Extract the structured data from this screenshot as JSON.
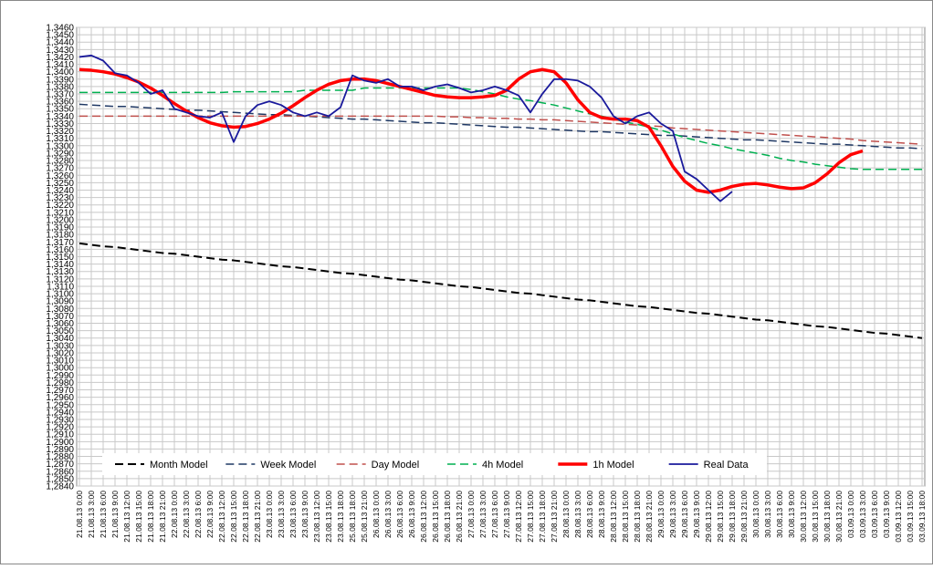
{
  "chart_data": {
    "type": "line",
    "legend": "bottom",
    "grid": true,
    "categories": [
      "21.08.13 0:00",
      "21.08.13 3:00",
      "21.08.13 6:00",
      "21.08.13 9:00",
      "21.08.13 12:00",
      "21.08.13 15:00",
      "21.08.13 18:00",
      "21.08.13 21:00",
      "22.08.13 0:00",
      "22.08.13 3:00",
      "22.08.13 6:00",
      "22.08.13 9:00",
      "22.08.13 12:00",
      "22.08.13 15:00",
      "22.08.13 18:00",
      "22.08.13 21:00",
      "23.08.13 0:00",
      "23.08.13 3:00",
      "23.08.13 6:00",
      "23.08.13 9:00",
      "23.08.13 12:00",
      "23.08.13 15:00",
      "23.08.13 18:00",
      "25.08.13 18:00",
      "25.08.13 21:00",
      "26.08.13 0:00",
      "26.08.13 3:00",
      "26.08.13 6:00",
      "26.08.13 9:00",
      "26.08.13 12:00",
      "26.08.13 15:00",
      "26.08.13 18:00",
      "26.08.13 21:00",
      "27.08.13 0:00",
      "27.08.13 3:00",
      "27.08.13 6:00",
      "27.08.13 9:00",
      "27.08.13 12:00",
      "27.08.13 15:00",
      "27.08.13 18:00",
      "27.08.13 21:00",
      "28.08.13 0:00",
      "28.08.13 3:00",
      "28.08.13 6:00",
      "28.08.13 9:00",
      "28.08.13 12:00",
      "28.08.13 15:00",
      "28.08.13 18:00",
      "28.08.13 21:00",
      "29.08.13 0:00",
      "29.08.13 3:00",
      "29.08.13 6:00",
      "29.08.13 9:00",
      "29.08.13 12:00",
      "29.08.13 15:00",
      "29.08.13 18:00",
      "29.08.13 21:00",
      "30.08.13 0:00",
      "30.08.13 3:00",
      "30.08.13 6:00",
      "30.08.13 9:00",
      "30.08.13 12:00",
      "30.08.13 15:00",
      "30.08.13 18:00",
      "30.08.13 21:00",
      "03.09.13 0:00",
      "03.09.13 3:00",
      "03.09.13 6:00",
      "03.09.13 9:00",
      "03.09.13 12:00",
      "03.09.13 15:00",
      "03.09.13 18:00"
    ],
    "ylim": [
      1.284,
      1.346
    ],
    "yticks": [
      {
        "value": 1.284,
        "label": "1,2840"
      },
      {
        "value": 1.285,
        "label": "1,2850"
      },
      {
        "value": 1.286,
        "label": "1,2860"
      },
      {
        "value": 1.287,
        "label": "1,2870"
      },
      {
        "value": 1.288,
        "label": "1,2880"
      },
      {
        "value": 1.289,
        "label": "1,2890"
      },
      {
        "value": 1.29,
        "label": "1,2900"
      },
      {
        "value": 1.291,
        "label": "1,2910"
      },
      {
        "value": 1.292,
        "label": "1,2920"
      },
      {
        "value": 1.293,
        "label": "1,2930"
      },
      {
        "value": 1.294,
        "label": "1,2940"
      },
      {
        "value": 1.295,
        "label": "1,2950"
      },
      {
        "value": 1.296,
        "label": "1,2960"
      },
      {
        "value": 1.297,
        "label": "1,2970"
      },
      {
        "value": 1.298,
        "label": "1,2980"
      },
      {
        "value": 1.299,
        "label": "1,2990"
      },
      {
        "value": 1.3,
        "label": "1,3000"
      },
      {
        "value": 1.301,
        "label": "1,3010"
      },
      {
        "value": 1.302,
        "label": "1,3020"
      },
      {
        "value": 1.303,
        "label": "1,3030"
      },
      {
        "value": 1.304,
        "label": "1,3040"
      },
      {
        "value": 1.305,
        "label": "1,3050"
      },
      {
        "value": 1.306,
        "label": "1,3060"
      },
      {
        "value": 1.307,
        "label": "1,3070"
      },
      {
        "value": 1.308,
        "label": "1,3080"
      },
      {
        "value": 1.309,
        "label": "1,3090"
      },
      {
        "value": 1.31,
        "label": "1,3100"
      },
      {
        "value": 1.311,
        "label": "1,3110"
      },
      {
        "value": 1.312,
        "label": "1,3120"
      },
      {
        "value": 1.313,
        "label": "1,3130"
      },
      {
        "value": 1.314,
        "label": "1,3140"
      },
      {
        "value": 1.315,
        "label": "1,3150"
      },
      {
        "value": 1.316,
        "label": "1,3160"
      },
      {
        "value": 1.317,
        "label": "1,3170"
      },
      {
        "value": 1.318,
        "label": "1,3180"
      },
      {
        "value": 1.319,
        "label": "1,3190"
      },
      {
        "value": 1.32,
        "label": "1,3200"
      },
      {
        "value": 1.321,
        "label": "1,3210"
      },
      {
        "value": 1.322,
        "label": "1,3220"
      },
      {
        "value": 1.323,
        "label": "1,3230"
      },
      {
        "value": 1.324,
        "label": "1,3240"
      },
      {
        "value": 1.325,
        "label": "1,3250"
      },
      {
        "value": 1.326,
        "label": "1,3260"
      },
      {
        "value": 1.327,
        "label": "1,3270"
      },
      {
        "value": 1.328,
        "label": "1,3280"
      },
      {
        "value": 1.329,
        "label": "1,3290"
      },
      {
        "value": 1.33,
        "label": "1,3300"
      },
      {
        "value": 1.331,
        "label": "1,3310"
      },
      {
        "value": 1.332,
        "label": "1,3320"
      },
      {
        "value": 1.333,
        "label": "1,3330"
      },
      {
        "value": 1.334,
        "label": "1,3340"
      },
      {
        "value": 1.335,
        "label": "1,3350"
      },
      {
        "value": 1.336,
        "label": "1,3360"
      },
      {
        "value": 1.337,
        "label": "1,3370"
      },
      {
        "value": 1.338,
        "label": "1,3380"
      },
      {
        "value": 1.339,
        "label": "1,3390"
      },
      {
        "value": 1.34,
        "label": "1,3400"
      },
      {
        "value": 1.341,
        "label": "1,3410"
      },
      {
        "value": 1.342,
        "label": "1,3420"
      },
      {
        "value": 1.343,
        "label": "1,3430"
      },
      {
        "value": 1.344,
        "label": "1,3440"
      },
      {
        "value": 1.345,
        "label": "1,3450"
      },
      {
        "value": 1.346,
        "label": "1,3460"
      }
    ],
    "series": [
      {
        "name": "Month Model",
        "color": "#000000",
        "dashed": true,
        "width": 2,
        "values": [
          1.3168,
          1.3166,
          1.3164,
          1.3163,
          1.3161,
          1.3159,
          1.3157,
          1.3155,
          1.3154,
          1.3152,
          1.315,
          1.3148,
          1.3146,
          1.3145,
          1.3143,
          1.3141,
          1.3139,
          1.3137,
          1.3136,
          1.3134,
          1.3132,
          1.313,
          1.3128,
          1.3127,
          1.3125,
          1.3123,
          1.3121,
          1.3119,
          1.3118,
          1.3116,
          1.3114,
          1.3112,
          1.311,
          1.3109,
          1.3107,
          1.3105,
          1.3103,
          1.3101,
          1.31,
          1.3098,
          1.3096,
          1.3094,
          1.3092,
          1.3091,
          1.3089,
          1.3087,
          1.3085,
          1.3083,
          1.3082,
          1.308,
          1.3078,
          1.3076,
          1.3074,
          1.3073,
          1.3071,
          1.3069,
          1.3067,
          1.3065,
          1.3064,
          1.3062,
          1.306,
          1.3058,
          1.3056,
          1.3055,
          1.3053,
          1.3051,
          1.3049,
          1.3047,
          1.3046,
          1.3044,
          1.3042,
          1.304
        ]
      },
      {
        "name": "Week Model",
        "color": "#1f3864",
        "dashed": true,
        "width": 1.5,
        "values": [
          1.3356,
          1.3355,
          1.3354,
          1.3353,
          1.3353,
          1.3352,
          1.3351,
          1.335,
          1.3349,
          1.3348,
          1.3348,
          1.3347,
          1.3346,
          1.3345,
          1.3344,
          1.3343,
          1.3342,
          1.3342,
          1.3341,
          1.334,
          1.3339,
          1.3338,
          1.3337,
          1.3336,
          1.3336,
          1.3335,
          1.3334,
          1.3333,
          1.3332,
          1.3331,
          1.3331,
          1.333,
          1.3329,
          1.3328,
          1.3327,
          1.3326,
          1.3325,
          1.3325,
          1.3324,
          1.3323,
          1.3322,
          1.3321,
          1.332,
          1.3319,
          1.3319,
          1.3318,
          1.3317,
          1.3316,
          1.3315,
          1.3314,
          1.3314,
          1.3313,
          1.3312,
          1.3311,
          1.331,
          1.3309,
          1.3308,
          1.3308,
          1.3307,
          1.3306,
          1.3305,
          1.3304,
          1.3303,
          1.3302,
          1.3302,
          1.3301,
          1.33,
          1.3299,
          1.3298,
          1.3297,
          1.3297,
          1.3296
        ]
      },
      {
        "name": "Day Model",
        "color": "#c0504d",
        "dashed": true,
        "width": 1.5,
        "values": [
          1.334,
          1.334,
          1.334,
          1.334,
          1.334,
          1.334,
          1.334,
          1.334,
          1.334,
          1.334,
          1.334,
          1.334,
          1.334,
          1.334,
          1.334,
          1.334,
          1.334,
          1.334,
          1.334,
          1.334,
          1.334,
          1.334,
          1.334,
          1.334,
          1.334,
          1.334,
          1.334,
          1.334,
          1.334,
          1.334,
          1.334,
          1.3339,
          1.3339,
          1.3338,
          1.3338,
          1.3337,
          1.3337,
          1.3336,
          1.3336,
          1.3335,
          1.3335,
          1.3334,
          1.3333,
          1.3332,
          1.3331,
          1.333,
          1.3329,
          1.3328,
          1.3327,
          1.3326,
          1.3324,
          1.3323,
          1.3322,
          1.3321,
          1.332,
          1.3319,
          1.3318,
          1.3317,
          1.3316,
          1.3315,
          1.3314,
          1.3313,
          1.3312,
          1.3311,
          1.331,
          1.3309,
          1.3307,
          1.3306,
          1.3305,
          1.3304,
          1.3303,
          1.3302
        ]
      },
      {
        "name": "4h Model",
        "color": "#00b050",
        "dashed": true,
        "width": 1.5,
        "values": [
          1.3372,
          1.3372,
          1.3372,
          1.3372,
          1.3372,
          1.3372,
          1.3372,
          1.3372,
          1.3372,
          1.3372,
          1.3372,
          1.3372,
          1.3372,
          1.3373,
          1.3373,
          1.3373,
          1.3373,
          1.3373,
          1.3373,
          1.3375,
          1.3375,
          1.3375,
          1.3375,
          1.3375,
          1.3378,
          1.3378,
          1.3378,
          1.3378,
          1.3378,
          1.3378,
          1.3378,
          1.3378,
          1.3378,
          1.3376,
          1.3373,
          1.337,
          1.3366,
          1.3363,
          1.3361,
          1.3358,
          1.3355,
          1.3351,
          1.3347,
          1.3343,
          1.334,
          1.3336,
          1.3332,
          1.3329,
          1.3325,
          1.3321,
          1.3316,
          1.3311,
          1.3307,
          1.3303,
          1.33,
          1.3296,
          1.3293,
          1.329,
          1.3287,
          1.3283,
          1.328,
          1.3278,
          1.3275,
          1.3273,
          1.3271,
          1.3269,
          1.3268,
          1.3268,
          1.3268,
          1.3268,
          1.3268,
          1.3268
        ]
      },
      {
        "name": "1h Model",
        "color": "#ff0000",
        "dashed": false,
        "width": 3.5,
        "values": [
          1.3403,
          1.3402,
          1.34,
          1.3397,
          1.3392,
          1.3386,
          1.3378,
          1.3368,
          1.3357,
          1.3347,
          1.3338,
          1.3331,
          1.3327,
          1.3325,
          1.3326,
          1.333,
          1.3336,
          1.3344,
          1.3354,
          1.3365,
          1.3375,
          1.3383,
          1.3388,
          1.339,
          1.339,
          1.3388,
          1.3384,
          1.338,
          1.3376,
          1.3372,
          1.3368,
          1.3366,
          1.3365,
          1.3365,
          1.3366,
          1.3368,
          1.3375,
          1.339,
          1.34,
          1.3403,
          1.34,
          1.3385,
          1.3362,
          1.3345,
          1.3338,
          1.3336,
          1.3336,
          1.3334,
          1.3325,
          1.33,
          1.3272,
          1.3252,
          1.324,
          1.3237,
          1.324,
          1.3245,
          1.3248,
          1.3249,
          1.3247,
          1.3244,
          1.3242,
          1.3243,
          1.325,
          1.3262,
          1.3277,
          1.3288,
          1.3293,
          null,
          null,
          null,
          null,
          null
        ]
      },
      {
        "name": "Real Data",
        "color": "#1a1a9c",
        "dashed": false,
        "width": 1.8,
        "values": [
          1.342,
          1.3422,
          1.3415,
          1.3398,
          1.3395,
          1.3385,
          1.337,
          1.3375,
          1.335,
          1.3345,
          1.334,
          1.3338,
          1.3345,
          1.3305,
          1.334,
          1.3355,
          1.336,
          1.3355,
          1.3345,
          1.334,
          1.3345,
          1.334,
          1.3352,
          1.3395,
          1.3388,
          1.3385,
          1.339,
          1.338,
          1.338,
          1.3375,
          1.338,
          1.3383,
          1.3378,
          1.3372,
          1.3375,
          1.338,
          1.3375,
          1.3368,
          1.3345,
          1.337,
          1.339,
          1.339,
          1.3388,
          1.338,
          1.3365,
          1.334,
          1.333,
          1.334,
          1.3345,
          1.333,
          1.332,
          1.3265,
          1.3255,
          1.324,
          1.3225,
          1.3238,
          null,
          null,
          null,
          null,
          null,
          null,
          null,
          null,
          null,
          null,
          null,
          null,
          null,
          null,
          null,
          null
        ]
      }
    ]
  }
}
